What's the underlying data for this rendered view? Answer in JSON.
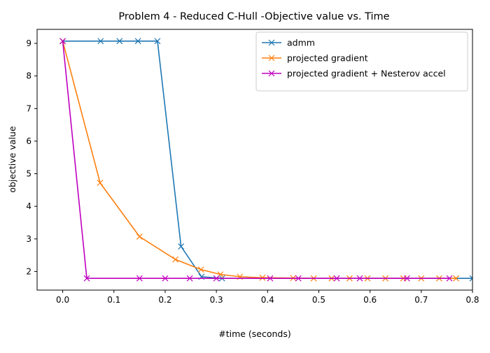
{
  "chart_data": {
    "type": "line",
    "title": "Problem 4 - Reduced C-Hull -Objective value vs. Time",
    "xlabel": "#time (seconds)",
    "ylabel": "objective value",
    "xlim": [
      -0.05,
      0.8
    ],
    "ylim": [
      1.43,
      9.43
    ],
    "xticks": [
      0.0,
      0.1,
      0.2,
      0.3,
      0.4,
      0.5,
      0.6,
      0.7,
      0.8
    ],
    "xtick_labels": [
      "0.0",
      "0.1",
      "0.2",
      "0.3",
      "0.4",
      "0.5",
      "0.6",
      "0.7",
      "0.8"
    ],
    "yticks": [
      2,
      3,
      4,
      5,
      6,
      7,
      8,
      9
    ],
    "ytick_labels": [
      "2",
      "3",
      "4",
      "5",
      "6",
      "7",
      "8",
      "9"
    ],
    "grid": false,
    "legend_position": "top-right",
    "marker": "x",
    "series": [
      {
        "name": "admm",
        "color": "#1f77b4",
        "x": [
          0.0,
          0.074,
          0.111,
          0.147,
          0.185,
          0.231,
          0.271,
          0.311,
          0.8
        ],
        "y": [
          9.07,
          9.07,
          9.07,
          9.07,
          9.07,
          2.77,
          1.84,
          1.79,
          1.79
        ]
      },
      {
        "name": "projected gradient",
        "color": "#ff7f0e",
        "x": [
          0.0,
          0.073,
          0.15,
          0.22,
          0.27,
          0.308,
          0.346,
          0.39,
          0.45,
          0.49,
          0.525,
          0.56,
          0.595,
          0.63,
          0.665,
          0.7,
          0.735,
          0.768
        ],
        "y": [
          9.07,
          4.72,
          3.07,
          2.37,
          2.06,
          1.91,
          1.84,
          1.81,
          1.8,
          1.79,
          1.79,
          1.79,
          1.79,
          1.79,
          1.79,
          1.79,
          1.79,
          1.79
        ]
      },
      {
        "name": "projected gradient + Nesterov accel",
        "color": "#bf00bf",
        "x": [
          0.0,
          0.047,
          0.15,
          0.2,
          0.248,
          0.3,
          0.405,
          0.46,
          0.535,
          0.58,
          0.672,
          0.755
        ],
        "y": [
          9.07,
          1.79,
          1.79,
          1.79,
          1.79,
          1.79,
          1.79,
          1.79,
          1.79,
          1.79,
          1.79,
          1.79
        ]
      }
    ]
  }
}
